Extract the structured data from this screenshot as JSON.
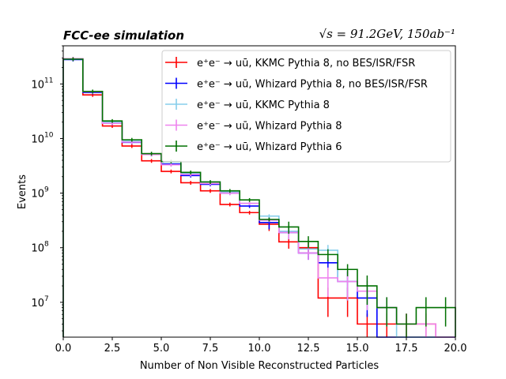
{
  "chart_data": {
    "type": "step",
    "title_left": "FCC-ee simulation",
    "title_right": "√s = 91.2GeV, 150ab⁻¹",
    "xlabel": "Number of Non Visible Reconstructed Particles",
    "ylabel": "Events",
    "xlim": [
      0,
      20
    ],
    "ylim": [
      2300000.0,
      500000000000.0
    ],
    "yscale": "log",
    "x_ticks": [
      0.0,
      2.5,
      5.0,
      7.5,
      10.0,
      12.5,
      15.0,
      17.5,
      20.0
    ],
    "x_tick_labels": [
      "0.0",
      "2.5",
      "5.0",
      "7.5",
      "10.0",
      "12.5",
      "15.0",
      "17.5",
      "20.0"
    ],
    "y_ticks": [
      10000000.0,
      100000000.0,
      1000000000.0,
      10000000000.0,
      100000000000.0
    ],
    "y_tick_labels": [
      "10",
      "10",
      "10",
      "10",
      "10"
    ],
    "y_tick_exps": [
      "7",
      "8",
      "9",
      "10",
      "11"
    ],
    "bin_edges": [
      0,
      1,
      2,
      3,
      4,
      5,
      6,
      7,
      8,
      9,
      10,
      11,
      12,
      13,
      14,
      15,
      16,
      17,
      18,
      19,
      20
    ],
    "legend_position": "top-right",
    "series": [
      {
        "name": "e⁺e⁻ → uū, KKMC Pythia 8, no BES/ISR/FSR",
        "color": "#ff0000",
        "values": [
          290000000000.0,
          63000000000.0,
          17000000000.0,
          7300000000.0,
          3900000000.0,
          2500000000.0,
          1550000000.0,
          1100000000.0,
          620000000.0,
          440000000.0,
          270000000.0,
          128000000.0,
          100000000.0,
          12000000.0,
          12000000.0,
          4000000.0,
          4000000.0,
          4000000.0,
          4000000.0,
          null
        ]
      },
      {
        "name": "e⁺e⁻ → uū, Whizard Pythia 8, no BES/ISR/FSR",
        "color": "#0000ff",
        "values": [
          280000000000.0,
          70000000000.0,
          19000000000.0,
          8500000000.0,
          5100000000.0,
          3400000000.0,
          2100000000.0,
          1450000000.0,
          1000000000.0,
          580000000.0,
          290000000.0,
          190000000.0,
          80000000.0,
          53000000.0,
          24000000.0,
          12000000.0,
          null,
          null,
          null,
          null
        ]
      },
      {
        "name": "e⁺e⁻ → uū, KKMC Pythia 8",
        "color": "#87ceeb",
        "values": [
          285000000000.0,
          72000000000.0,
          20000000000.0,
          9000000000.0,
          5200000000.0,
          3700000000.0,
          2300000000.0,
          1600000000.0,
          1050000000.0,
          650000000.0,
          380000000.0,
          200000000.0,
          95000000.0,
          90000000.0,
          24000000.0,
          16000000.0,
          8000000.0,
          null,
          null,
          null
        ]
      },
      {
        "name": "e⁺e⁻ → uū, Whizard Pythia 8",
        "color": "#ee82ee",
        "values": [
          290000000000.0,
          72000000000.0,
          19000000000.0,
          8600000000.0,
          5100000000.0,
          3300000000.0,
          2200000000.0,
          1500000000.0,
          1000000000.0,
          650000000.0,
          320000000.0,
          190000000.0,
          80000000.0,
          28000000.0,
          24000000.0,
          16000000.0,
          8000000.0,
          4000000.0,
          4000000.0,
          null
        ]
      },
      {
        "name": "e⁺e⁻ → uū, Whizard Pythia 6",
        "color": "#007000",
        "values": [
          285000000000.0,
          73000000000.0,
          21000000000.0,
          9500000000.0,
          5300000000.0,
          3800000000.0,
          2400000000.0,
          1600000000.0,
          1100000000.0,
          750000000.0,
          330000000.0,
          240000000.0,
          130000000.0,
          75000000.0,
          40000000.0,
          20000000.0,
          8000000.0,
          4000000.0,
          8000000.0,
          8000000.0
        ]
      }
    ]
  }
}
